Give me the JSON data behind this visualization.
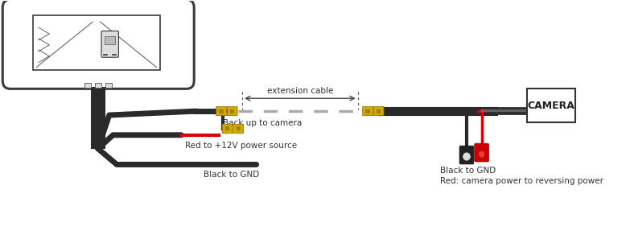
{
  "bg_color": "#ffffff",
  "mirror_outline_color": "#3a3a3a",
  "wire_dark": "#2a2a2a",
  "wire_red": "#dd0000",
  "wire_gray": "#aaaaaa",
  "connector_yellow": "#d4aa00",
  "connector_yellow_inner": "#f0c820",
  "connector_black_cap": "#222222",
  "connector_red_cap": "#cc0000",
  "text_color": "#333333",
  "label_backup": "Back up to camera",
  "label_red": "Red to +12V power source",
  "label_black_gnd_left": "Black to GND",
  "label_ext_cable": "extension cable",
  "label_black_gnd_right": "Black to GND",
  "label_red_cam": "Red: camera power to reversing power",
  "label_camera": "CAMERA",
  "fig_width": 7.83,
  "fig_height": 2.92,
  "dpi": 100
}
